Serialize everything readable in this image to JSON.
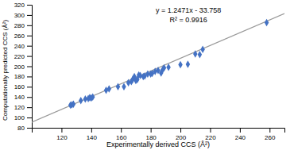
{
  "chart_data": {
    "type": "scatter",
    "x_label": "Experimentally derived CCS (Å²)",
    "y_label": "Computationally predicted CCS (Å²)",
    "annotations": [
      "y = 1.2471x - 33.758",
      "R² = 0.9916"
    ],
    "xlim": [
      100,
      270
    ],
    "ylim": [
      80,
      320
    ],
    "xticks": [
      120,
      140,
      160,
      180,
      200,
      220,
      240,
      260
    ],
    "yticks": [
      80,
      100,
      120,
      140,
      160,
      180,
      200,
      220,
      240,
      260,
      280,
      300,
      320
    ],
    "series": [
      {
        "type": "scatter",
        "color": "#4472C4",
        "marker": "diamond",
        "x": [
          126,
          127,
          128,
          133,
          136,
          138,
          139,
          140,
          141,
          150,
          152,
          158,
          162,
          165,
          167,
          168,
          169,
          170,
          171,
          172,
          173,
          175,
          176,
          178,
          180,
          181,
          183,
          185,
          187,
          188,
          189,
          192,
          200,
          205,
          210,
          213,
          215,
          258
        ],
        "values": [
          124,
          125,
          126,
          133,
          136,
          137,
          139,
          138,
          140,
          153,
          156,
          160,
          160,
          168,
          170,
          175,
          180,
          172,
          174,
          183,
          182,
          180,
          181,
          185,
          185,
          186,
          190,
          192,
          187,
          193,
          197,
          198,
          203,
          204,
          224,
          223,
          233,
          285
        ]
      },
      {
        "type": "line",
        "color": "#999999",
        "line_style": "solid",
        "x": [
          100,
          270
        ],
        "values": [
          90.952,
          302.959
        ]
      }
    ]
  }
}
